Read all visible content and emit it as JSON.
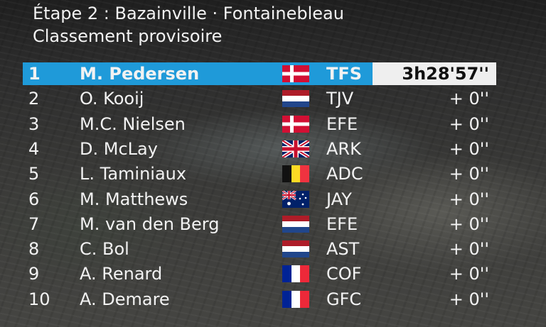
{
  "header": {
    "title": "Étape 2 : Bazainville · Fontainebleau",
    "subtitle": "Classement provisoire"
  },
  "colors": {
    "leader_bar": "#1f9ad9",
    "time_box": "#efefef",
    "text": "#f2f2f2"
  },
  "standings": [
    {
      "pos": "1",
      "name": "M. Pedersen",
      "flag": "denmark",
      "team": "TFS",
      "time": "3h28'57''"
    },
    {
      "pos": "2",
      "name": "O. Kooij",
      "flag": "netherlands",
      "team": "TJV",
      "time": "+ 0''"
    },
    {
      "pos": "3",
      "name": "M.C. Nielsen",
      "flag": "denmark",
      "team": "EFE",
      "time": "+ 0''"
    },
    {
      "pos": "4",
      "name": "D. McLay",
      "flag": "uk",
      "team": "ARK",
      "time": "+ 0''"
    },
    {
      "pos": "5",
      "name": "L. Taminiaux",
      "flag": "belgium",
      "team": "ADC",
      "time": "+ 0''"
    },
    {
      "pos": "6",
      "name": "M. Matthews",
      "flag": "australia",
      "team": "JAY",
      "time": "+ 0''"
    },
    {
      "pos": "7",
      "name": "M. van den Berg",
      "flag": "netherlands",
      "team": "EFE",
      "time": "+ 0''"
    },
    {
      "pos": "8",
      "name": "C. Bol",
      "flag": "netherlands",
      "team": "AST",
      "time": "+ 0''"
    },
    {
      "pos": "9",
      "name": "A. Renard",
      "flag": "france",
      "team": "COF",
      "time": "+ 0''"
    },
    {
      "pos": "10",
      "name": "A. Demare",
      "flag": "france",
      "team": "GFC",
      "time": "+ 0''"
    }
  ]
}
